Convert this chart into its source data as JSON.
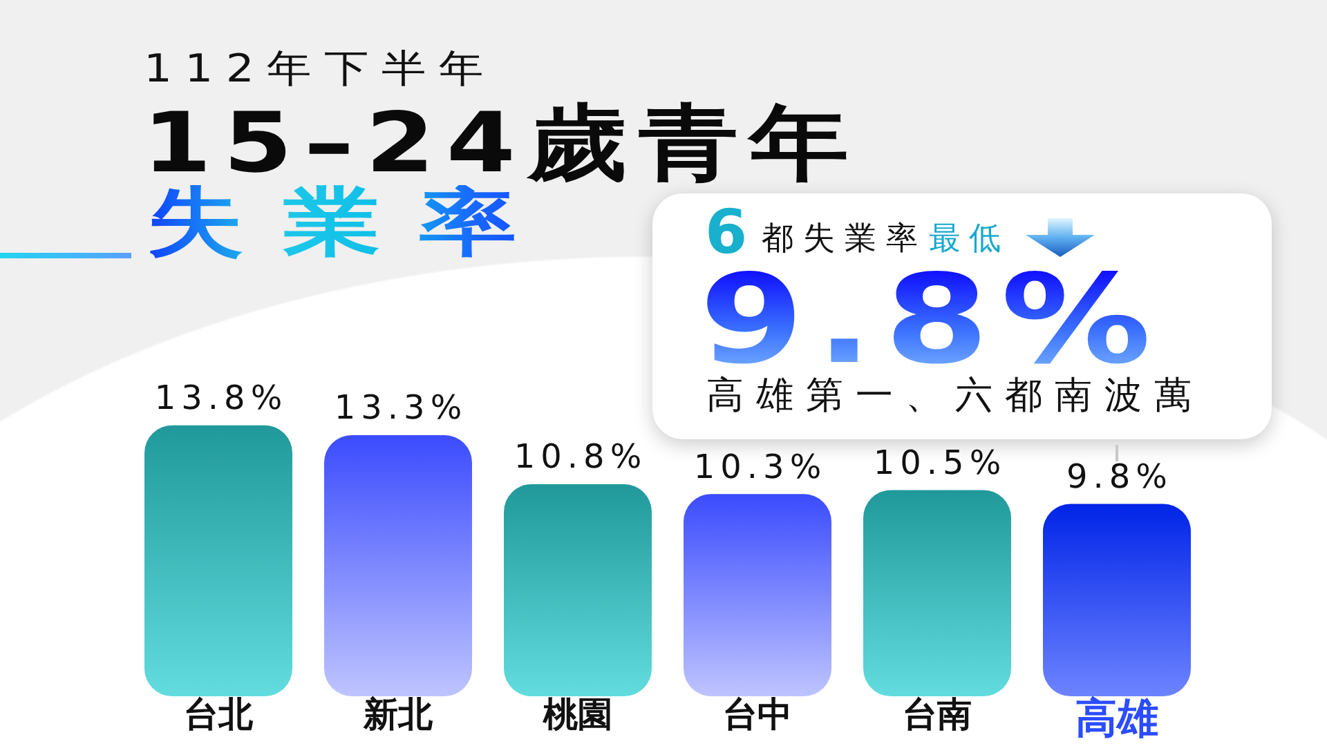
{
  "chart_data": {
    "type": "bar",
    "title": "15–24歲青年",
    "subtitle": "失業率",
    "annotations": [
      "112年下半年",
      "6",
      "都失業率",
      "最低",
      "9.8%",
      "高雄第一、六都南波萬"
    ],
    "categories": [
      "台北",
      "新北",
      "桃園",
      "台中",
      "台南",
      "高雄"
    ],
    "values": [
      13.8,
      13.3,
      10.8,
      10.3,
      10.5,
      9.8
    ],
    "value_labels": [
      "13.8%",
      "13.3%",
      "10.8%",
      "10.3%",
      "10.5%",
      "9.8%"
    ],
    "colors": [
      "#2ccfd2",
      "#7d88fe",
      "#2ccfd2",
      "#7d88fe",
      "#2ccfd2",
      "#2b4cff"
    ],
    "tick_labels": "x",
    "grid": false,
    "legend": false
  }
}
